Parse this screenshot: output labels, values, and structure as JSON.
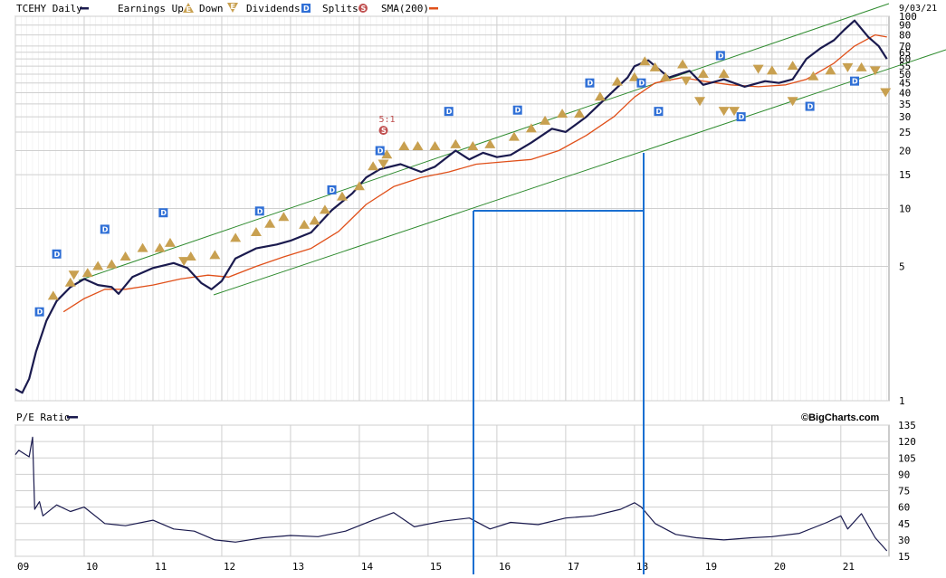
{
  "header": {
    "symbol": "TCEHY Daily",
    "legend_earnings_up": "Earnings Up",
    "legend_down": "Down",
    "legend_dividends": "Dividends",
    "legend_splits": "Splits",
    "legend_sma": "SMA(200)",
    "date": "9/03/21"
  },
  "lower": {
    "label": "P/E Ratio",
    "brand": "©BigCharts.com"
  },
  "colors": {
    "price": "#1a1a4e",
    "sma": "#e0501a",
    "trend": "#2e8b2e",
    "annotation": "#1a6fd1",
    "earnings": "#c8a050",
    "dividend": "#2f6fd6",
    "split": "#c05050",
    "grid": "#cfcfcf"
  },
  "chart_data": [
    {
      "type": "line",
      "title": "TCEHY Daily",
      "y_scale": "log",
      "ylim": [
        1,
        100
      ],
      "y_ticks": [
        "1",
        "5",
        "10",
        "15",
        "20",
        "25",
        "30",
        "35",
        "40",
        "45",
        "50",
        "55",
        "60",
        "65",
        "70",
        "80",
        "90",
        "100"
      ],
      "x_ticks": [
        "09",
        "10",
        "11",
        "12",
        "13",
        "14",
        "15",
        "16",
        "17",
        "18",
        "19",
        "20",
        "21"
      ],
      "xlim": [
        2009.0,
        2021.7
      ],
      "series": [
        {
          "name": "TCEHY Daily",
          "x": [
            2009.0,
            2009.1,
            2009.2,
            2009.3,
            2009.45,
            2009.6,
            2009.8,
            2010.0,
            2010.2,
            2010.4,
            2010.5,
            2010.7,
            2011.0,
            2011.3,
            2011.5,
            2011.7,
            2011.85,
            2012.0,
            2012.2,
            2012.5,
            2012.8,
            2013.0,
            2013.3,
            2013.6,
            2013.9,
            2014.1,
            2014.3,
            2014.6,
            2014.9,
            2015.1,
            2015.4,
            2015.6,
            2015.8,
            2016.0,
            2016.2,
            2016.5,
            2016.8,
            2017.0,
            2017.3,
            2017.6,
            2017.9,
            2018.0,
            2018.2,
            2018.5,
            2018.8,
            2019.0,
            2019.3,
            2019.6,
            2019.9,
            2020.1,
            2020.3,
            2020.5,
            2020.7,
            2020.9,
            2021.05,
            2021.2,
            2021.4,
            2021.55,
            2021.67
          ],
          "y": [
            1.15,
            1.1,
            1.3,
            1.8,
            2.6,
            3.3,
            3.9,
            4.3,
            4.0,
            3.9,
            3.6,
            4.4,
            4.9,
            5.2,
            4.9,
            4.1,
            3.8,
            4.2,
            5.5,
            6.2,
            6.5,
            6.8,
            7.5,
            9.8,
            12.0,
            14.5,
            16.0,
            17.0,
            15.5,
            16.5,
            20.0,
            18.0,
            19.5,
            18.5,
            19.0,
            22.0,
            26.0,
            25.0,
            30.0,
            38.0,
            48.0,
            55.0,
            59.0,
            48.0,
            52.0,
            44.0,
            47.0,
            43.0,
            46.0,
            45.0,
            47.0,
            60.0,
            68.0,
            75.0,
            85.0,
            95.0,
            78.0,
            70.0,
            60.0
          ]
        },
        {
          "name": "SMA(200)",
          "x": [
            2009.7,
            2010.0,
            2010.3,
            2010.6,
            2011.0,
            2011.4,
            2011.8,
            2012.1,
            2012.5,
            2012.9,
            2013.3,
            2013.7,
            2014.1,
            2014.5,
            2014.9,
            2015.3,
            2015.7,
            2016.1,
            2016.5,
            2016.9,
            2017.3,
            2017.7,
            2018.0,
            2018.3,
            2018.7,
            2019.0,
            2019.4,
            2019.8,
            2020.2,
            2020.5,
            2020.9,
            2021.2,
            2021.5,
            2021.67
          ],
          "y": [
            2.9,
            3.4,
            3.8,
            3.8,
            4.0,
            4.3,
            4.5,
            4.4,
            5.0,
            5.6,
            6.2,
            7.6,
            10.5,
            13.0,
            14.5,
            15.5,
            17.0,
            17.5,
            18.0,
            20.0,
            24.0,
            30.0,
            38.0,
            45.0,
            48.0,
            46.0,
            44.0,
            43.0,
            44.0,
            47.0,
            57.0,
            70.0,
            80.0,
            78.0
          ]
        }
      ],
      "annotations": {
        "split_label": "5:1",
        "dividend_marker": "D",
        "earnings_marker": "E",
        "split_marker": "S"
      }
    },
    {
      "type": "line",
      "title": "P/E Ratio",
      "ylim": [
        15,
        135
      ],
      "y_ticks": [
        "15",
        "30",
        "45",
        "60",
        "75",
        "90",
        "105",
        "120",
        "135"
      ],
      "x_ticks": [
        "09",
        "10",
        "11",
        "12",
        "13",
        "14",
        "15",
        "16",
        "17",
        "18",
        "19",
        "20",
        "21"
      ],
      "xlim": [
        2009.0,
        2021.7
      ],
      "series": [
        {
          "name": "P/E Ratio",
          "x": [
            2009.0,
            2009.05,
            2009.1,
            2009.2,
            2009.25,
            2009.28,
            2009.35,
            2009.4,
            2009.6,
            2009.8,
            2010.0,
            2010.3,
            2010.6,
            2011.0,
            2011.3,
            2011.6,
            2011.9,
            2012.2,
            2012.6,
            2013.0,
            2013.4,
            2013.8,
            2014.2,
            2014.5,
            2014.8,
            2015.2,
            2015.6,
            2015.9,
            2016.2,
            2016.6,
            2017.0,
            2017.4,
            2017.8,
            2018.0,
            2018.1,
            2018.3,
            2018.6,
            2018.9,
            2019.3,
            2019.7,
            2020.0,
            2020.4,
            2020.8,
            2021.0,
            2021.1,
            2021.3,
            2021.5,
            2021.67
          ],
          "y": [
            108,
            112,
            110,
            106,
            124,
            58,
            65,
            52,
            62,
            56,
            60,
            45,
            43,
            48,
            40,
            38,
            30,
            28,
            32,
            34,
            33,
            38,
            48,
            55,
            42,
            47,
            50,
            40,
            46,
            44,
            50,
            52,
            58,
            64,
            60,
            45,
            35,
            32,
            30,
            32,
            33,
            36,
            46,
            52,
            40,
            54,
            32,
            20
          ]
        }
      ]
    }
  ]
}
